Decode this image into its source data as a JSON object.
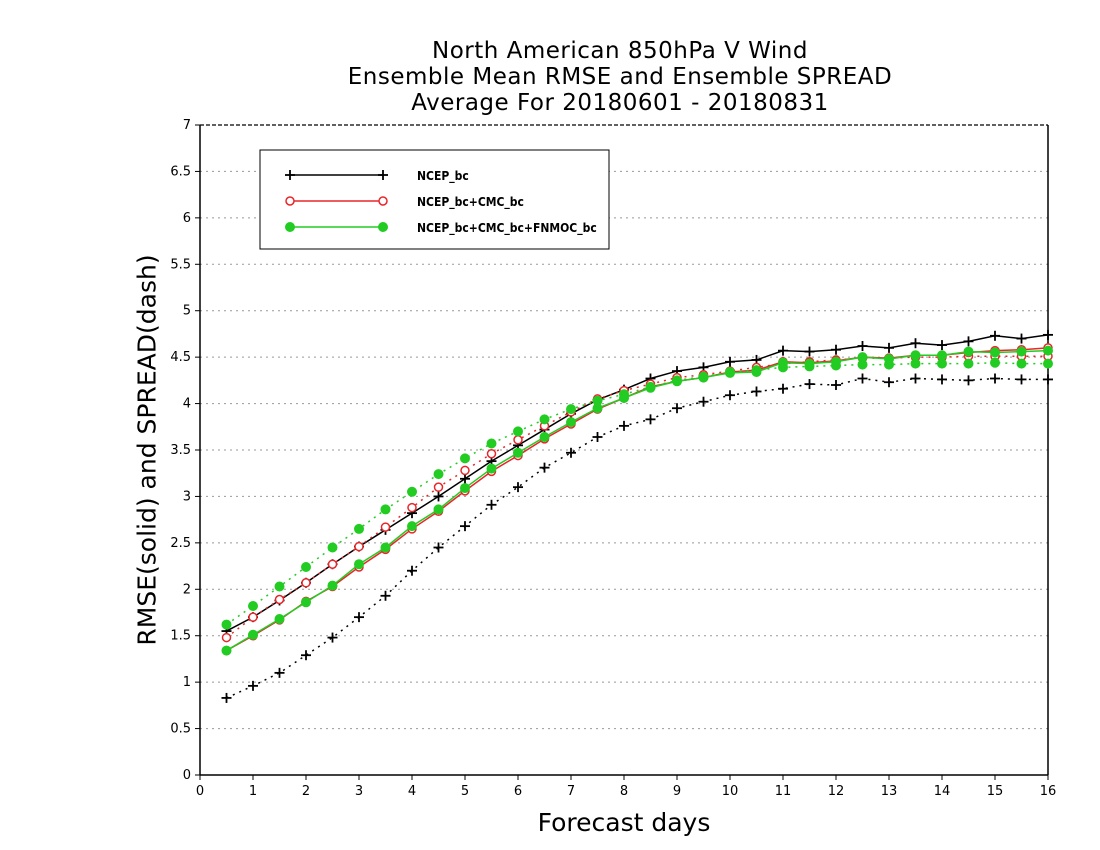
{
  "chart_data": {
    "type": "line",
    "title_lines": [
      "North American 850hPa V Wind",
      "Ensemble Mean RMSE and Ensemble SPREAD",
      "Average For 20180601 - 20180831"
    ],
    "xlabel": "Forecast days",
    "ylabel": "RMSE(solid) and SPREAD(dash)",
    "xlim": [
      0,
      16
    ],
    "ylim": [
      0,
      7
    ],
    "xticks": [
      "0",
      "1",
      "2",
      "3",
      "4",
      "5",
      "6",
      "7",
      "8",
      "9",
      "10",
      "11",
      "12",
      "13",
      "14",
      "15",
      "16"
    ],
    "yticks": [
      "0",
      "0.5",
      "1",
      "1.5",
      "2",
      "2.5",
      "3",
      "3.5",
      "4",
      "4.5",
      "5",
      "5.5",
      "6",
      "6.5",
      "7"
    ],
    "grid": "horizontal dotted",
    "legend_position": "top-left",
    "x": [
      0.5,
      1,
      1.5,
      2,
      2.5,
      3,
      3.5,
      4,
      4.5,
      5,
      5.5,
      6,
      6.5,
      7,
      7.5,
      8,
      8.5,
      9,
      9.5,
      10,
      10.5,
      11,
      11.5,
      12,
      12.5,
      13,
      13.5,
      14,
      14.5,
      15,
      15.5,
      16
    ],
    "series": [
      {
        "name": "NCEP_bc",
        "color": "#000000",
        "marker": "plus",
        "rmse": [
          1.55,
          1.7,
          1.88,
          2.07,
          2.27,
          2.46,
          2.64,
          2.82,
          3.0,
          3.19,
          3.38,
          3.55,
          3.72,
          3.89,
          4.04,
          4.15,
          4.27,
          4.35,
          4.39,
          4.45,
          4.47,
          4.57,
          4.56,
          4.58,
          4.62,
          4.6,
          4.65,
          4.63,
          4.67,
          4.73,
          4.7,
          4.74
        ],
        "spread": [
          0.83,
          0.96,
          1.1,
          1.29,
          1.48,
          1.7,
          1.93,
          2.2,
          2.45,
          2.68,
          2.91,
          3.1,
          3.31,
          3.47,
          3.64,
          3.76,
          3.83,
          3.95,
          4.02,
          4.09,
          4.13,
          4.16,
          4.21,
          4.2,
          4.27,
          4.23,
          4.27,
          4.26,
          4.25,
          4.27,
          4.26,
          4.26
        ]
      },
      {
        "name": "NCEP_bc+CMC_bc",
        "color": "#e8262a",
        "marker": "open-circle",
        "rmse": [
          1.34,
          1.5,
          1.67,
          1.87,
          2.03,
          2.24,
          2.43,
          2.65,
          2.84,
          3.06,
          3.27,
          3.44,
          3.62,
          3.78,
          3.94,
          4.06,
          4.18,
          4.24,
          4.28,
          4.34,
          4.36,
          4.45,
          4.44,
          4.46,
          4.5,
          4.49,
          4.52,
          4.52,
          4.55,
          4.57,
          4.58,
          4.6
        ],
        "spread": [
          1.48,
          1.7,
          1.89,
          2.07,
          2.27,
          2.46,
          2.67,
          2.88,
          3.1,
          3.28,
          3.46,
          3.61,
          3.76,
          3.91,
          4.05,
          4.14,
          4.21,
          4.28,
          4.31,
          4.35,
          4.39,
          4.43,
          4.45,
          4.47,
          4.49,
          4.49,
          4.5,
          4.5,
          4.51,
          4.51,
          4.51,
          4.51
        ]
      },
      {
        "name": "NCEP_bc+CMC_bc+FNMOC_bc",
        "color": "#22cc22",
        "marker": "filled-circle",
        "rmse": [
          1.34,
          1.51,
          1.68,
          1.86,
          2.04,
          2.27,
          2.45,
          2.68,
          2.86,
          3.09,
          3.3,
          3.47,
          3.64,
          3.8,
          3.95,
          4.06,
          4.17,
          4.24,
          4.28,
          4.33,
          4.34,
          4.44,
          4.43,
          4.45,
          4.5,
          4.48,
          4.52,
          4.52,
          4.56,
          4.55,
          4.56,
          4.57
        ],
        "spread": [
          1.62,
          1.82,
          2.03,
          2.24,
          2.45,
          2.65,
          2.86,
          3.05,
          3.24,
          3.41,
          3.57,
          3.7,
          3.83,
          3.94,
          4.03,
          4.1,
          4.18,
          4.25,
          4.29,
          4.34,
          4.36,
          4.39,
          4.4,
          4.41,
          4.42,
          4.42,
          4.43,
          4.43,
          4.43,
          4.44,
          4.43,
          4.43
        ]
      }
    ]
  }
}
